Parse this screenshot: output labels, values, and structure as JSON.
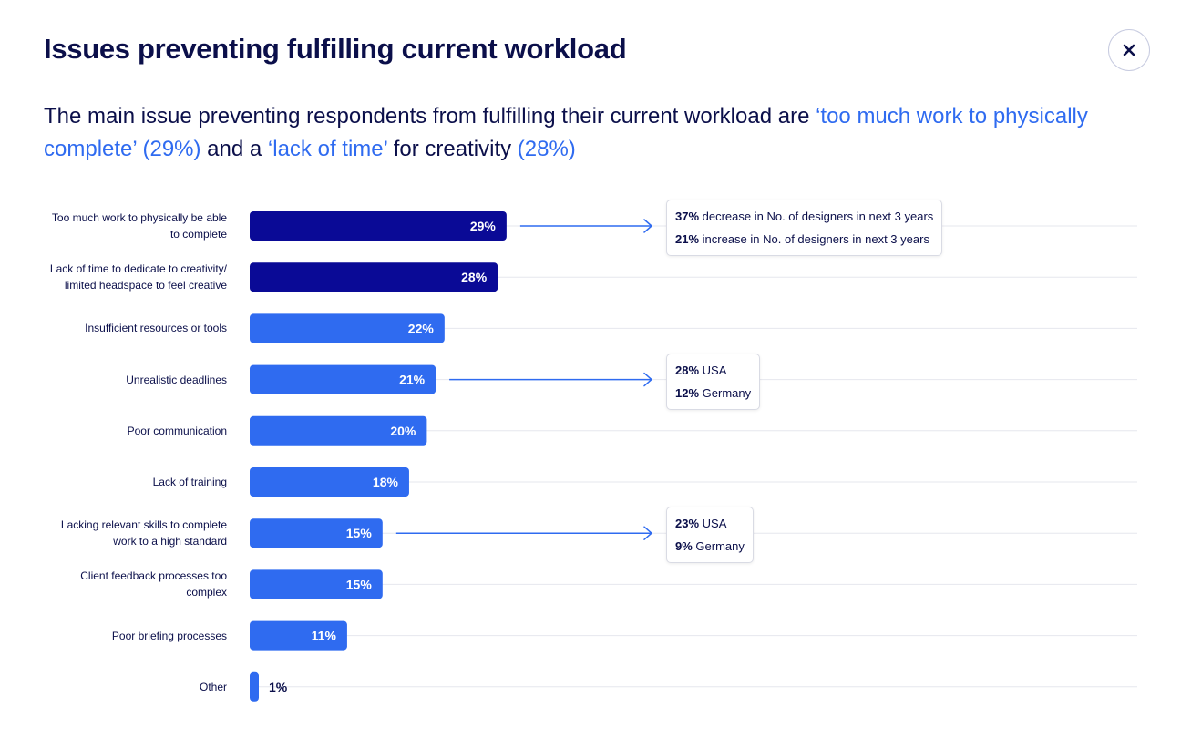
{
  "header": {
    "title": "Issues preventing fulfilling current workload",
    "close_icon": "close-icon"
  },
  "subtitle": {
    "part1": "The main issue preventing respondents from fulfilling their current workload are ",
    "hl1": "‘too much work to physically complete’ (29%)",
    "part2": " and a ",
    "hl2": "‘lack of time’",
    "part3": " for creativity ",
    "hl3": "(28%)"
  },
  "colors": {
    "title": "#0b0f4a",
    "highlight": "#2f6bf0",
    "bar_dark": "#0a0a96",
    "bar_light": "#2f6bf0",
    "arrow": "#2f6bf0",
    "gridline": "#e6e7ee"
  },
  "chart_data": {
    "type": "bar",
    "orientation": "horizontal",
    "categories": [
      "Too much work to physically be able to complete",
      "Lack of time to dedicate to creativity/ limited headspace to feel creative",
      "Insufficient resources or tools",
      "Unrealistic deadlines",
      "Poor communication",
      "Lack of training",
      "Lacking relevant skills to complete work to a high standard",
      "Client feedback processes too complex",
      "Poor briefing processes",
      "Other"
    ],
    "category_lines": [
      [
        "Too much work to physically be able",
        "to complete"
      ],
      [
        "Lack of time to dedicate to creativity/",
        "limited headspace to feel creative"
      ],
      [
        "Insufficient resources or tools"
      ],
      [
        "Unrealistic deadlines"
      ],
      [
        "Poor communication"
      ],
      [
        "Lack of training"
      ],
      [
        "Lacking relevant skills to complete",
        "work to a high standard"
      ],
      [
        "Client feedback processes too",
        "complex"
      ],
      [
        "Poor briefing processes"
      ],
      [
        "Other"
      ]
    ],
    "values": [
      29,
      28,
      22,
      21,
      20,
      18,
      15,
      15,
      11,
      1
    ],
    "value_labels": [
      "29%",
      "28%",
      "22%",
      "21%",
      "20%",
      "18%",
      "15%",
      "15%",
      "11%",
      "1%"
    ],
    "highlighted": [
      true,
      true,
      false,
      false,
      false,
      false,
      false,
      false,
      false,
      false
    ],
    "unit": "%",
    "callouts": [
      {
        "row": 0,
        "lines": [
          {
            "bold": "37%",
            "text": " decrease in No. of designers in next 3 years"
          },
          {
            "bold": "21%",
            "text": " increase in No. of designers in next 3 years"
          }
        ]
      },
      {
        "row": 3,
        "lines": [
          {
            "bold": "28%",
            "text": " USA"
          },
          {
            "bold": "12%",
            "text": " Germany"
          }
        ]
      },
      {
        "row": 6,
        "lines": [
          {
            "bold": "23%",
            "text": " USA"
          },
          {
            "bold": "9%",
            "text": " Germany"
          }
        ]
      }
    ]
  }
}
